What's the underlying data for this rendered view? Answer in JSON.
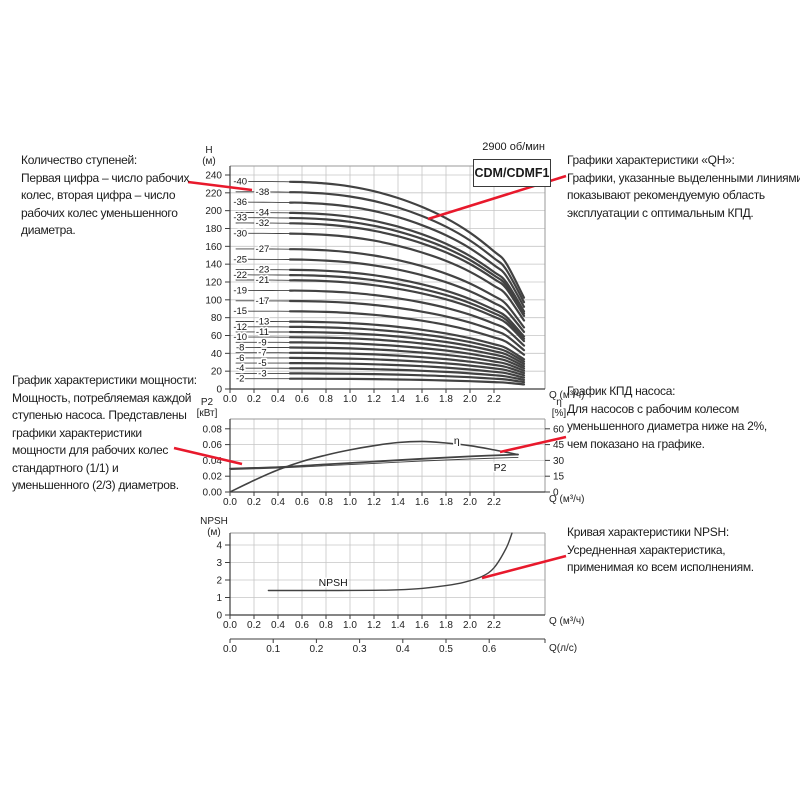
{
  "colors": {
    "red_pointer": "#e8192c",
    "curve": "#424242",
    "grid": "#c6c6c6",
    "frame": "#9a9a9a",
    "axis": "#3c3c3c"
  },
  "annotations": {
    "stages": {
      "lines": [
        "Количество ступеней:",
        "Первая цифра – число рабочих",
        "колес, вторая цифра – число",
        "рабочих колес уменьшенного",
        "диаметра."
      ]
    },
    "qh": {
      "lines": [
        "Графики характеристики «QH»:",
        "Графики, указанные выделенными линиями,",
        "показывают рекомендуемую область",
        "эксплуатации с оптимальным КПД."
      ]
    },
    "power": {
      "lines": [
        "График характеристики мощности:",
        "Мощность, потребляемая каждой",
        "ступенью насоса. Представлены",
        "графики характеристики",
        "мощности для рабочих колес",
        "стандартного (1/1) и",
        "уменьшенного (2/3) диаметров."
      ]
    },
    "efficiency": {
      "lines": [
        "График КПД насоса:",
        "Для насосов с рабочим колесом",
        "уменьшенного диаметра ниже на 2%,",
        "чем показано на графике."
      ]
    },
    "npsh": {
      "lines": [
        "Кривая характеристики NPSH:",
        "Усредненная характеристика,",
        "применимая ко всем исполнениям."
      ]
    }
  },
  "chart_data": [
    {
      "type": "line",
      "title": "CDM/CDMF1",
      "subtitle": "2900 об/мин",
      "ylabel_lines": [
        "H",
        "(м)"
      ],
      "xlabel": "Q (м³/ч)",
      "x_ticks": [
        0,
        0.2,
        0.4,
        0.6,
        0.8,
        1.0,
        1.2,
        1.4,
        1.6,
        1.8,
        2.0,
        2.2
      ],
      "y_ticks": [
        0,
        20,
        40,
        60,
        80,
        100,
        120,
        140,
        160,
        180,
        200,
        220,
        240
      ],
      "xlim": [
        0,
        2.62
      ],
      "ylim": [
        0,
        250
      ],
      "grid": true,
      "legend_note": "curve labels = number of stages (full / reduced diameter impellers)",
      "thin_from": 0.05,
      "bold_from": 0.5,
      "q_end": 2.45,
      "label_cols_q": [
        0.085,
        0.27
      ],
      "shape_q": [
        0,
        0.2,
        0.4,
        0.6,
        0.8,
        1.0,
        1.2,
        1.4,
        1.6,
        1.8,
        2.0,
        2.2,
        2.3,
        2.45
      ],
      "shape_f": [
        1,
        1,
        0.999,
        0.997,
        0.99,
        0.976,
        0.953,
        0.92,
        0.877,
        0.823,
        0.753,
        0.663,
        0.607,
        0.44
      ],
      "curves": [
        {
          "label": "-40",
          "h0": 232.8,
          "col": 0
        },
        {
          "label": "-38",
          "h0": 221.2,
          "col": 1
        },
        {
          "label": "-36",
          "h0": 209.5,
          "col": 0
        },
        {
          "label": "-34",
          "h0": 197.9,
          "col": 1
        },
        {
          "label": "-33",
          "h0": 192.1,
          "col": 0
        },
        {
          "label": "-32",
          "h0": 186.2,
          "col": 1
        },
        {
          "label": "-30",
          "h0": 174.6,
          "col": 0
        },
        {
          "label": "-27",
          "h0": 157.1,
          "col": 1
        },
        {
          "label": "-25",
          "h0": 145.5,
          "col": 0
        },
        {
          "label": "-23",
          "h0": 133.9,
          "col": 1
        },
        {
          "label": "-22",
          "h0": 128.0,
          "col": 0
        },
        {
          "label": "-21",
          "h0": 122.2,
          "col": 1
        },
        {
          "label": "-19",
          "h0": 110.6,
          "col": 0
        },
        {
          "label": "-17",
          "h0": 98.9,
          "col": 1
        },
        {
          "label": "-15",
          "h0": 87.3,
          "col": 0
        },
        {
          "label": "-13",
          "h0": 75.7,
          "col": 1
        },
        {
          "label": "-12",
          "h0": 69.8,
          "col": 0
        },
        {
          "label": "-11",
          "h0": 64.0,
          "col": 1
        },
        {
          "label": "-10",
          "h0": 58.2,
          "col": 0
        },
        {
          "label": "-9",
          "h0": 52.4,
          "col": 1
        },
        {
          "label": "-8",
          "h0": 46.6,
          "col": 0
        },
        {
          "label": "-7",
          "h0": 40.7,
          "col": 1
        },
        {
          "label": "-6",
          "h0": 34.9,
          "col": 0
        },
        {
          "label": "-5",
          "h0": 29.1,
          "col": 1
        },
        {
          "label": "-4",
          "h0": 23.3,
          "col": 0
        },
        {
          "label": "-3",
          "h0": 17.5,
          "col": 1
        },
        {
          "label": "-2",
          "h0": 11.6,
          "col": 0
        }
      ]
    },
    {
      "type": "line",
      "ylabel_lines": [
        "P2",
        "[кВт]"
      ],
      "ylabel_right_lines": [
        "η",
        "[%]"
      ],
      "xlabel": "Q (м³/ч)",
      "x_ticks": [
        0,
        0.2,
        0.4,
        0.6,
        0.8,
        1.0,
        1.2,
        1.4,
        1.6,
        1.8,
        2.0,
        2.2
      ],
      "y_ticks": [
        0,
        0.02,
        0.04,
        0.06,
        0.08
      ],
      "y2_ticks": [
        0,
        15,
        30,
        45,
        60
      ],
      "xlim": [
        0,
        2.62
      ],
      "ylim": [
        0,
        0.0925
      ],
      "y2lim": [
        0,
        69.3
      ],
      "grid": true,
      "series": [
        {
          "name": "η",
          "axis": "right",
          "x": [
            0,
            0.2,
            0.4,
            0.6,
            0.8,
            1.0,
            1.2,
            1.4,
            1.6,
            1.8,
            2.0,
            2.2,
            2.4
          ],
          "y": [
            0,
            11,
            21,
            29,
            35,
            40,
            44,
            47,
            48,
            46.5,
            44,
            40,
            35.5
          ],
          "width": 1.6,
          "label_at": [
            1.89,
            49
          ]
        },
        {
          "name": "P2",
          "axis": "left",
          "variant": "1/1",
          "x": [
            0,
            0.4,
            0.8,
            1.2,
            1.6,
            2.0,
            2.4
          ],
          "y": [
            0.0295,
            0.0315,
            0.035,
            0.0385,
            0.042,
            0.045,
            0.0475
          ],
          "width": 1.8,
          "label_at": [
            2.25,
            0.031
          ]
        },
        {
          "name": "",
          "axis": "left",
          "variant": "2/3",
          "x": [
            0,
            0.4,
            0.8,
            1.2,
            1.6,
            2.0,
            2.4
          ],
          "y": [
            0.0285,
            0.0303,
            0.0333,
            0.0362,
            0.0392,
            0.0418,
            0.0438
          ],
          "width": 0.9,
          "label_at": null
        }
      ]
    },
    {
      "type": "line",
      "ylabel_lines": [
        "NPSH",
        "(м)"
      ],
      "xlabel": "Q (м³/ч)",
      "xlabel2": "Q(л/с)",
      "x_ticks": [
        0,
        0.2,
        0.4,
        0.6,
        0.8,
        1.0,
        1.2,
        1.4,
        1.6,
        1.8,
        2.0,
        2.2
      ],
      "x2_ticks": [
        0,
        0.1,
        0.2,
        0.3,
        0.4,
        0.5,
        0.6
      ],
      "x2_to_x_factor": 3.6,
      "y_ticks": [
        0,
        1,
        2,
        3,
        4
      ],
      "xlim": [
        0,
        2.62
      ],
      "ylim": [
        0,
        4.7
      ],
      "grid": true,
      "series": [
        {
          "name": "NPSH",
          "x": [
            0.32,
            0.6,
            0.9,
            1.2,
            1.4,
            1.6,
            1.8,
            1.95,
            2.1,
            2.2,
            2.3,
            2.35
          ],
          "y": [
            1.4,
            1.4,
            1.4,
            1.41,
            1.44,
            1.52,
            1.68,
            1.87,
            2.2,
            2.7,
            3.8,
            4.68
          ],
          "width": 1.4,
          "label_at": [
            0.86,
            1.85
          ]
        }
      ]
    }
  ]
}
